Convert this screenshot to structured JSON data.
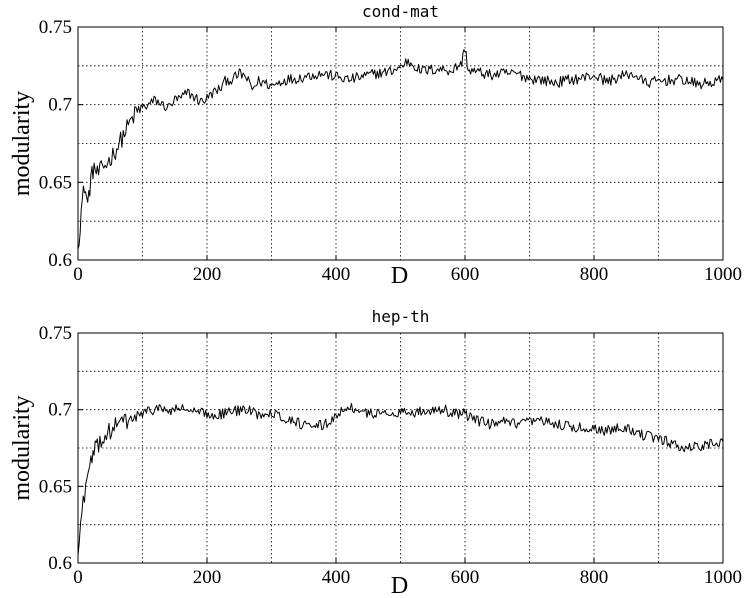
{
  "chart_data": [
    {
      "type": "line",
      "title": "cond-mat",
      "xlabel": "D",
      "ylabel": "modularity",
      "xlim": [
        0,
        1000
      ],
      "ylim": [
        0.6,
        0.75
      ],
      "xticks": [
        0,
        200,
        400,
        600,
        800,
        1000
      ],
      "yticks": [
        0.6,
        0.65,
        0.7,
        0.75
      ],
      "xtick_labels": [
        "0",
        "200",
        "400",
        "600",
        "800",
        "1000"
      ],
      "ytick_labels": [
        "0.6",
        "0.65",
        "0.7",
        "0.75"
      ],
      "grid": true,
      "grid_xstep": 100,
      "grid_ystep": 0.025,
      "series": [
        {
          "color": "#000000",
          "x": [
            0,
            5,
            10,
            15,
            20,
            25,
            30,
            40,
            50,
            60,
            70,
            80,
            90,
            100,
            110,
            120,
            130,
            140,
            150,
            160,
            170,
            180,
            190,
            200,
            210,
            220,
            230,
            240,
            250,
            260,
            270,
            280,
            290,
            300,
            320,
            340,
            360,
            380,
            400,
            420,
            440,
            460,
            480,
            500,
            510,
            520,
            530,
            540,
            560,
            580,
            595,
            600,
            605,
            620,
            640,
            660,
            680,
            700,
            720,
            740,
            760,
            780,
            800,
            820,
            840,
            860,
            880,
            900,
            920,
            940,
            960,
            980,
            1000
          ],
          "y": [
            0.607,
            0.632,
            0.648,
            0.636,
            0.652,
            0.66,
            0.655,
            0.66,
            0.665,
            0.672,
            0.68,
            0.688,
            0.695,
            0.698,
            0.7,
            0.703,
            0.7,
            0.698,
            0.703,
            0.704,
            0.708,
            0.705,
            0.702,
            0.704,
            0.708,
            0.71,
            0.716,
            0.716,
            0.72,
            0.718,
            0.71,
            0.715,
            0.714,
            0.712,
            0.716,
            0.717,
            0.719,
            0.72,
            0.718,
            0.716,
            0.718,
            0.72,
            0.721,
            0.724,
            0.728,
            0.726,
            0.722,
            0.722,
            0.723,
            0.722,
            0.727,
            0.737,
            0.722,
            0.721,
            0.719,
            0.72,
            0.72,
            0.717,
            0.716,
            0.714,
            0.716,
            0.717,
            0.719,
            0.715,
            0.718,
            0.72,
            0.714,
            0.715,
            0.716,
            0.716,
            0.713,
            0.714,
            0.716
          ]
        }
      ]
    },
    {
      "type": "line",
      "title": "hep-th",
      "xlabel": "D",
      "ylabel": "modularity",
      "xlim": [
        0,
        1000
      ],
      "ylim": [
        0.6,
        0.75
      ],
      "xticks": [
        0,
        200,
        400,
        600,
        800,
        1000
      ],
      "yticks": [
        0.6,
        0.65,
        0.7,
        0.75
      ],
      "xtick_labels": [
        "0",
        "200",
        "400",
        "600",
        "800",
        "1000"
      ],
      "ytick_labels": [
        "0.6",
        "0.65",
        "0.7",
        "0.75"
      ],
      "grid": true,
      "grid_xstep": 100,
      "grid_ystep": 0.025,
      "series": [
        {
          "color": "#000000",
          "x": [
            0,
            4,
            8,
            12,
            16,
            20,
            25,
            30,
            40,
            50,
            60,
            70,
            80,
            90,
            100,
            110,
            120,
            130,
            140,
            150,
            160,
            170,
            180,
            190,
            200,
            220,
            240,
            260,
            280,
            300,
            320,
            340,
            360,
            380,
            400,
            410,
            420,
            430,
            440,
            460,
            480,
            500,
            520,
            540,
            560,
            580,
            600,
            620,
            640,
            660,
            680,
            700,
            720,
            740,
            760,
            780,
            800,
            820,
            840,
            860,
            880,
            900,
            920,
            940,
            960,
            980,
            1000
          ],
          "y": [
            0.605,
            0.625,
            0.64,
            0.65,
            0.658,
            0.665,
            0.672,
            0.677,
            0.682,
            0.686,
            0.69,
            0.692,
            0.693,
            0.695,
            0.697,
            0.699,
            0.701,
            0.7,
            0.699,
            0.7,
            0.701,
            0.7,
            0.698,
            0.698,
            0.697,
            0.697,
            0.699,
            0.7,
            0.697,
            0.699,
            0.694,
            0.692,
            0.688,
            0.69,
            0.695,
            0.7,
            0.703,
            0.699,
            0.697,
            0.698,
            0.697,
            0.699,
            0.698,
            0.699,
            0.701,
            0.698,
            0.697,
            0.693,
            0.69,
            0.692,
            0.69,
            0.692,
            0.692,
            0.691,
            0.689,
            0.688,
            0.688,
            0.686,
            0.69,
            0.686,
            0.683,
            0.681,
            0.678,
            0.675,
            0.676,
            0.678,
            0.679
          ]
        }
      ]
    }
  ]
}
